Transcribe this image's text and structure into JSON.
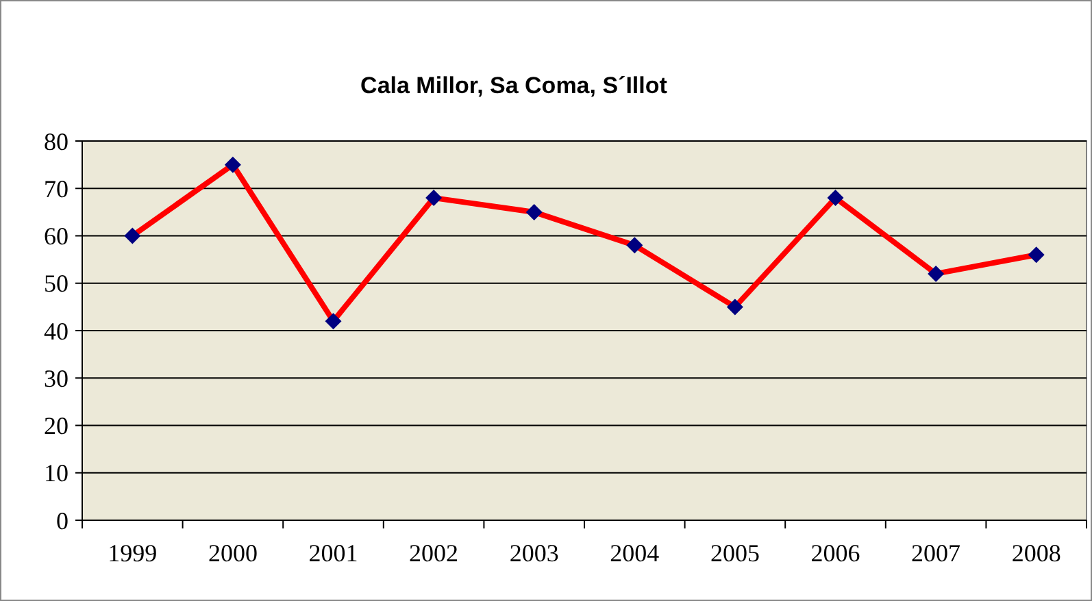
{
  "chart_data": {
    "type": "line",
    "title": "Cala Millor, Sa Coma, S´Illot",
    "categories": [
      "1999",
      "2000",
      "2001",
      "2002",
      "2003",
      "2004",
      "2005",
      "2006",
      "2007",
      "2008"
    ],
    "series": [
      {
        "color": "#ff0000",
        "values": [
          60,
          75,
          42,
          68,
          65,
          58,
          45,
          68,
          52,
          56
        ]
      }
    ],
    "ylim": [
      0,
      80
    ],
    "yticks": [
      0,
      10,
      20,
      30,
      40,
      50,
      60,
      70,
      80
    ],
    "grid": "y",
    "marker": "diamond",
    "line_style": "solid"
  }
}
